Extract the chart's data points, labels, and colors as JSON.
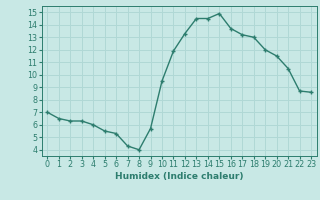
{
  "x": [
    0,
    1,
    2,
    3,
    4,
    5,
    6,
    7,
    8,
    9,
    10,
    11,
    12,
    13,
    14,
    15,
    16,
    17,
    18,
    19,
    20,
    21,
    22,
    23
  ],
  "y": [
    7.0,
    6.5,
    6.3,
    6.3,
    6.0,
    5.5,
    5.3,
    4.3,
    4.0,
    5.7,
    9.5,
    11.9,
    13.3,
    14.5,
    14.5,
    14.9,
    13.7,
    13.2,
    13.0,
    12.0,
    11.5,
    10.5,
    8.7,
    8.6
  ],
  "color": "#2d7d6e",
  "bg_color": "#c8e8e5",
  "grid_color": "#b0d8d5",
  "xlabel": "Humidex (Indice chaleur)",
  "ylim": [
    3.5,
    15.5
  ],
  "xlim": [
    -0.5,
    23.5
  ],
  "yticks": [
    4,
    5,
    6,
    7,
    8,
    9,
    10,
    11,
    12,
    13,
    14,
    15
  ],
  "xticks": [
    0,
    1,
    2,
    3,
    4,
    5,
    6,
    7,
    8,
    9,
    10,
    11,
    12,
    13,
    14,
    15,
    16,
    17,
    18,
    19,
    20,
    21,
    22,
    23
  ],
  "xlabel_fontsize": 6.5,
  "tick_fontsize": 5.8,
  "linewidth": 1.0,
  "markersize": 3.5,
  "marker_ew": 1.0
}
